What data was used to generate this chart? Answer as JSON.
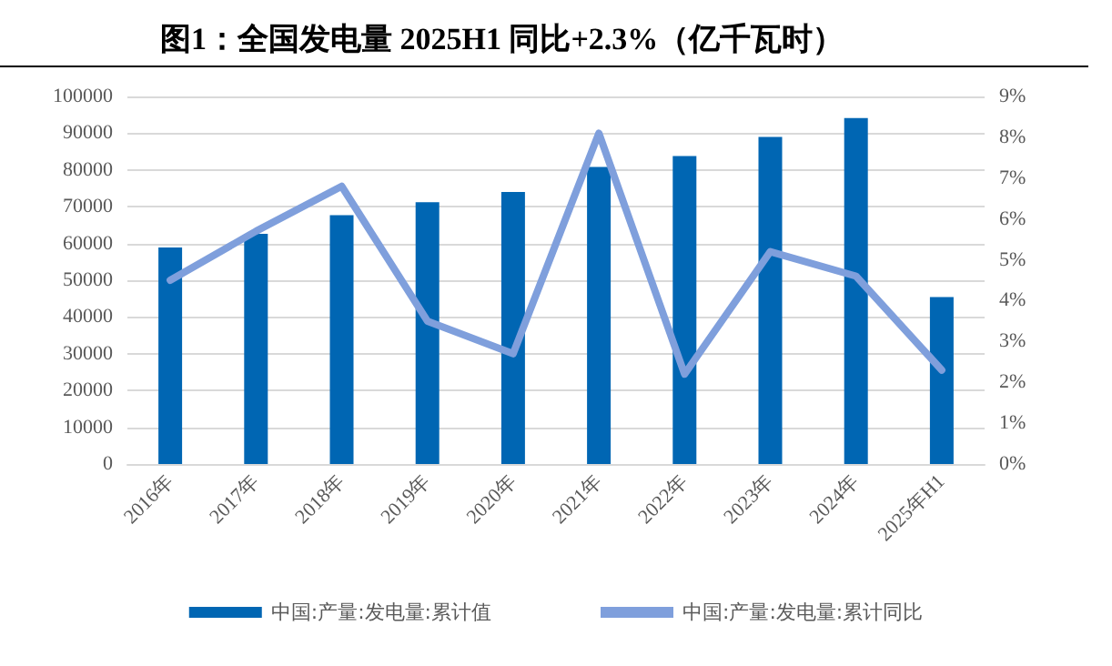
{
  "chart_data": {
    "type": "bar",
    "title": "图1：全国发电量 2025H1 同比+2.3%（亿千瓦时）",
    "categories": [
      "2016年",
      "2017年",
      "2018年",
      "2019年",
      "2020年",
      "2021年",
      "2022年",
      "2023年",
      "2024年",
      "2025年H1"
    ],
    "series": [
      {
        "name": "中国:产量:发电量:累计值",
        "color": "#0066b3",
        "values": [
          58900,
          62600,
          67700,
          71200,
          74000,
          80800,
          83800,
          89000,
          94100,
          45400
        ]
      },
      {
        "name": "中国:产量:发电量:累计同比",
        "type": "line",
        "axis": "y2",
        "color": "#7f9fdc",
        "values": [
          4.5,
          5.7,
          6.8,
          3.5,
          2.7,
          8.1,
          2.2,
          5.2,
          4.6,
          2.3
        ]
      }
    ],
    "ylim": [
      0,
      100000
    ],
    "yticks": [
      0,
      10000,
      20000,
      30000,
      40000,
      50000,
      60000,
      70000,
      80000,
      90000,
      100000
    ],
    "y2lim": [
      0,
      9
    ],
    "y2ticks": [
      {
        "value": 0,
        "label": "0%"
      },
      {
        "value": 1,
        "label": "1%"
      },
      {
        "value": 2,
        "label": "2%"
      },
      {
        "value": 3,
        "label": "3%"
      },
      {
        "value": 4,
        "label": "4%"
      },
      {
        "value": 5,
        "label": "5%"
      },
      {
        "value": 6,
        "label": "6%"
      },
      {
        "value": 7,
        "label": "7%"
      },
      {
        "value": 8,
        "label": "8%"
      },
      {
        "value": 9,
        "label": "9%"
      }
    ],
    "grid": "y",
    "legend": "bottom",
    "marker": "none",
    "line_style": "solid"
  }
}
